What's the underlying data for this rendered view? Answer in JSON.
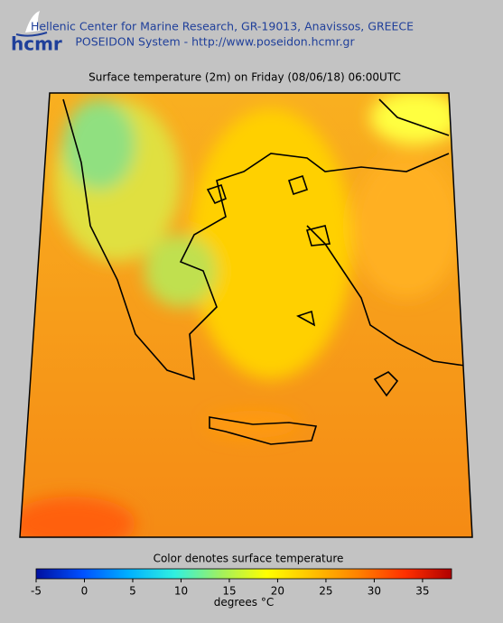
{
  "header": {
    "logo": "hcmr",
    "org": "Hellenic Center for Marine Research, GR-19013, Anavissos, GREECE",
    "system": "POSEIDON System - http://www.poseidon.hcmr.gr"
  },
  "map": {
    "title": "Surface temperature (2m) on Friday (08/06/18) 06:00UTC"
  },
  "colorbar": {
    "caption": "Color denotes surface temperature",
    "unit_label": "degrees",
    "unit": "°C",
    "range": [
      -5,
      38
    ],
    "ticks": [
      -5,
      0,
      5,
      10,
      15,
      20,
      25,
      30,
      35
    ],
    "colors": [
      "#0010a0",
      "#0050ff",
      "#00b0ff",
      "#30f0e0",
      "#a0f060",
      "#ffff00",
      "#ffc000",
      "#ff8000",
      "#ff3000",
      "#b00000"
    ]
  }
}
